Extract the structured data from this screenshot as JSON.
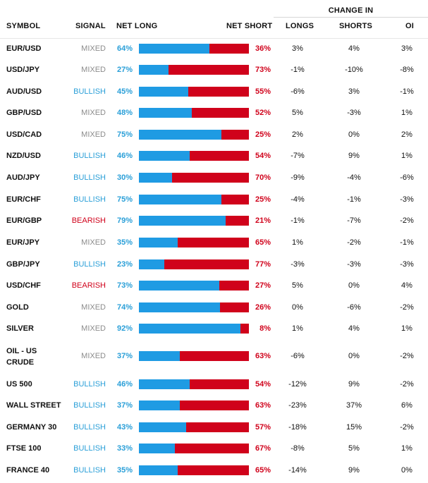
{
  "header": {
    "change_in": "CHANGE IN",
    "symbol": "SYMBOL",
    "signal": "SIGNAL",
    "net_long": "NET LONG",
    "net_short": "NET SHORT",
    "longs": "LONGS",
    "shorts": "SHORTS",
    "oi": "OI"
  },
  "colors": {
    "long_bar": "#1f9be3",
    "short_bar": "#d0021b",
    "bullish": "#2a9fd8",
    "bearish": "#d0021b",
    "mixed": "#8c8c8c"
  },
  "rows": [
    {
      "symbol": "EUR/USD",
      "signal": "MIXED",
      "net_long": "64%",
      "long_pct": 64,
      "net_short": "36%",
      "longs": "3%",
      "shorts": "4%",
      "oi": "3%"
    },
    {
      "symbol": "USD/JPY",
      "signal": "MIXED",
      "net_long": "27%",
      "long_pct": 27,
      "net_short": "73%",
      "longs": "-1%",
      "shorts": "-10%",
      "oi": "-8%"
    },
    {
      "symbol": "AUD/USD",
      "signal": "BULLISH",
      "net_long": "45%",
      "long_pct": 45,
      "net_short": "55%",
      "longs": "-6%",
      "shorts": "3%",
      "oi": "-1%"
    },
    {
      "symbol": "GBP/USD",
      "signal": "MIXED",
      "net_long": "48%",
      "long_pct": 48,
      "net_short": "52%",
      "longs": "5%",
      "shorts": "-3%",
      "oi": "1%"
    },
    {
      "symbol": "USD/CAD",
      "signal": "MIXED",
      "net_long": "75%",
      "long_pct": 75,
      "net_short": "25%",
      "longs": "2%",
      "shorts": "0%",
      "oi": "2%"
    },
    {
      "symbol": "NZD/USD",
      "signal": "BULLISH",
      "net_long": "46%",
      "long_pct": 46,
      "net_short": "54%",
      "longs": "-7%",
      "shorts": "9%",
      "oi": "1%"
    },
    {
      "symbol": "AUD/JPY",
      "signal": "BULLISH",
      "net_long": "30%",
      "long_pct": 30,
      "net_short": "70%",
      "longs": "-9%",
      "shorts": "-4%",
      "oi": "-6%"
    },
    {
      "symbol": "EUR/CHF",
      "signal": "BULLISH",
      "net_long": "75%",
      "long_pct": 75,
      "net_short": "25%",
      "longs": "-4%",
      "shorts": "-1%",
      "oi": "-3%"
    },
    {
      "symbol": "EUR/GBP",
      "signal": "BEARISH",
      "net_long": "79%",
      "long_pct": 79,
      "net_short": "21%",
      "longs": "-1%",
      "shorts": "-7%",
      "oi": "-2%"
    },
    {
      "symbol": "EUR/JPY",
      "signal": "MIXED",
      "net_long": "35%",
      "long_pct": 35,
      "net_short": "65%",
      "longs": "1%",
      "shorts": "-2%",
      "oi": "-1%"
    },
    {
      "symbol": "GBP/JPY",
      "signal": "BULLISH",
      "net_long": "23%",
      "long_pct": 23,
      "net_short": "77%",
      "longs": "-3%",
      "shorts": "-3%",
      "oi": "-3%"
    },
    {
      "symbol": "USD/CHF",
      "signal": "BEARISH",
      "net_long": "73%",
      "long_pct": 73,
      "net_short": "27%",
      "longs": "5%",
      "shorts": "0%",
      "oi": "4%"
    },
    {
      "symbol": "GOLD",
      "signal": "MIXED",
      "net_long": "74%",
      "long_pct": 74,
      "net_short": "26%",
      "longs": "0%",
      "shorts": "-6%",
      "oi": "-2%"
    },
    {
      "symbol": "SILVER",
      "signal": "MIXED",
      "net_long": "92%",
      "long_pct": 92,
      "net_short": "8%",
      "longs": "1%",
      "shorts": "4%",
      "oi": "1%"
    },
    {
      "symbol": "OIL - US",
      "symbol_line2": "CRUDE",
      "signal": "MIXED",
      "net_long": "37%",
      "long_pct": 37,
      "net_short": "63%",
      "longs": "-6%",
      "shorts": "0%",
      "oi": "-2%"
    },
    {
      "symbol": "US 500",
      "signal": "BULLISH",
      "net_long": "46%",
      "long_pct": 46,
      "net_short": "54%",
      "longs": "-12%",
      "shorts": "9%",
      "oi": "-2%"
    },
    {
      "symbol": "WALL STREET",
      "signal": "BULLISH",
      "net_long": "37%",
      "long_pct": 37,
      "net_short": "63%",
      "longs": "-23%",
      "shorts": "37%",
      "oi": "6%"
    },
    {
      "symbol": "GERMANY 30",
      "signal": "BULLISH",
      "net_long": "43%",
      "long_pct": 43,
      "net_short": "57%",
      "longs": "-18%",
      "shorts": "15%",
      "oi": "-2%"
    },
    {
      "symbol": "FTSE 100",
      "signal": "BULLISH",
      "net_long": "33%",
      "long_pct": 33,
      "net_short": "67%",
      "longs": "-8%",
      "shorts": "5%",
      "oi": "1%"
    },
    {
      "symbol": "FRANCE 40",
      "signal": "BULLISH",
      "net_long": "35%",
      "long_pct": 35,
      "net_short": "65%",
      "longs": "-14%",
      "shorts": "9%",
      "oi": "0%"
    }
  ]
}
